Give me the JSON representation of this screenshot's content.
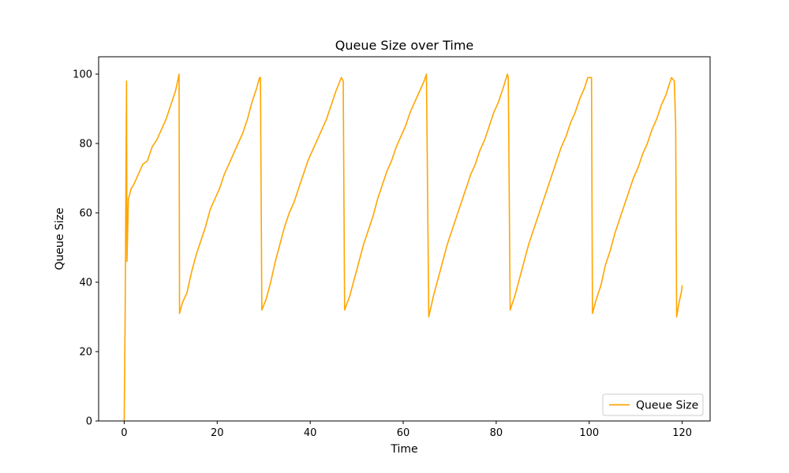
{
  "chart_data": {
    "type": "line",
    "title": "Queue Size over Time",
    "xlabel": "Time",
    "ylabel": "Queue Size",
    "xlim": [
      -5.5,
      126.0
    ],
    "ylim": [
      0,
      105
    ],
    "xticks": [
      0,
      20,
      40,
      60,
      80,
      100,
      120
    ],
    "yticks": [
      0,
      20,
      40,
      60,
      80,
      100
    ],
    "grid": false,
    "legend_position": "lower-right",
    "series": [
      {
        "name": "Queue Size",
        "color": "#FFA500",
        "points": [
          [
            0.0,
            0
          ],
          [
            0.2,
            30
          ],
          [
            0.5,
            98
          ],
          [
            0.6,
            46
          ],
          [
            0.9,
            64
          ],
          [
            1.5,
            67
          ],
          [
            2.0,
            68
          ],
          [
            3.0,
            71
          ],
          [
            4.0,
            74
          ],
          [
            5.0,
            75
          ],
          [
            6.0,
            79
          ],
          [
            7.0,
            81
          ],
          [
            8.0,
            84
          ],
          [
            9.0,
            87
          ],
          [
            10.0,
            91
          ],
          [
            11.0,
            95
          ],
          [
            11.5,
            98
          ],
          [
            11.8,
            100
          ],
          [
            11.9,
            31
          ],
          [
            12.5,
            34
          ],
          [
            13.5,
            37
          ],
          [
            14.5,
            43
          ],
          [
            15.5,
            48
          ],
          [
            16.5,
            52
          ],
          [
            17.5,
            56
          ],
          [
            18.5,
            61
          ],
          [
            19.5,
            64
          ],
          [
            20.5,
            67
          ],
          [
            21.5,
            71
          ],
          [
            22.5,
            74
          ],
          [
            23.5,
            77
          ],
          [
            24.5,
            80
          ],
          [
            25.5,
            83
          ],
          [
            26.5,
            87
          ],
          [
            27.5,
            92
          ],
          [
            28.5,
            96
          ],
          [
            29.1,
            99
          ],
          [
            29.3,
            99
          ],
          [
            29.6,
            32
          ],
          [
            30.5,
            35
          ],
          [
            31.5,
            40
          ],
          [
            32.5,
            46
          ],
          [
            33.5,
            51
          ],
          [
            34.5,
            56
          ],
          [
            35.5,
            60
          ],
          [
            36.5,
            63
          ],
          [
            37.5,
            67
          ],
          [
            38.5,
            71
          ],
          [
            39.5,
            75
          ],
          [
            40.5,
            78
          ],
          [
            41.5,
            81
          ],
          [
            42.5,
            84
          ],
          [
            43.5,
            87
          ],
          [
            44.5,
            91
          ],
          [
            45.5,
            95
          ],
          [
            46.7,
            99
          ],
          [
            47.1,
            98
          ],
          [
            47.4,
            32
          ],
          [
            48.5,
            36
          ],
          [
            49.5,
            41
          ],
          [
            50.5,
            46
          ],
          [
            51.5,
            51
          ],
          [
            52.5,
            55
          ],
          [
            53.5,
            59
          ],
          [
            54.5,
            64
          ],
          [
            55.5,
            68
          ],
          [
            56.5,
            72
          ],
          [
            57.5,
            75
          ],
          [
            58.5,
            79
          ],
          [
            59.5,
            82
          ],
          [
            60.5,
            85
          ],
          [
            61.5,
            89
          ],
          [
            62.5,
            92
          ],
          [
            63.5,
            95
          ],
          [
            64.5,
            98
          ],
          [
            65.0,
            100
          ],
          [
            65.5,
            30
          ],
          [
            66.5,
            36
          ],
          [
            67.5,
            41
          ],
          [
            68.5,
            46
          ],
          [
            69.5,
            51
          ],
          [
            70.5,
            55
          ],
          [
            71.5,
            59
          ],
          [
            72.5,
            63
          ],
          [
            73.5,
            67
          ],
          [
            74.5,
            71
          ],
          [
            75.5,
            74
          ],
          [
            76.5,
            78
          ],
          [
            77.5,
            81
          ],
          [
            78.5,
            85
          ],
          [
            79.5,
            89
          ],
          [
            80.5,
            92
          ],
          [
            81.5,
            96
          ],
          [
            82.4,
            100
          ],
          [
            82.6,
            99
          ],
          [
            83.0,
            32
          ],
          [
            84.0,
            36
          ],
          [
            85.0,
            41
          ],
          [
            86.0,
            46
          ],
          [
            87.0,
            51
          ],
          [
            88.0,
            55
          ],
          [
            89.0,
            59
          ],
          [
            90.0,
            63
          ],
          [
            91.0,
            67
          ],
          [
            92.0,
            71
          ],
          [
            93.0,
            75
          ],
          [
            94.0,
            79
          ],
          [
            95.0,
            82
          ],
          [
            96.0,
            86
          ],
          [
            97.0,
            89
          ],
          [
            98.0,
            93
          ],
          [
            99.0,
            96
          ],
          [
            99.7,
            99
          ],
          [
            100.5,
            99
          ],
          [
            100.7,
            31
          ],
          [
            101.5,
            35
          ],
          [
            102.5,
            39
          ],
          [
            103.5,
            45
          ],
          [
            104.5,
            49
          ],
          [
            105.5,
            54
          ],
          [
            106.5,
            58
          ],
          [
            107.5,
            62
          ],
          [
            108.5,
            66
          ],
          [
            109.5,
            70
          ],
          [
            110.5,
            73
          ],
          [
            111.5,
            77
          ],
          [
            112.5,
            80
          ],
          [
            113.5,
            84
          ],
          [
            114.5,
            87
          ],
          [
            115.5,
            91
          ],
          [
            116.5,
            94
          ],
          [
            117.2,
            97
          ],
          [
            117.7,
            99
          ],
          [
            118.3,
            98
          ],
          [
            118.6,
            85
          ],
          [
            118.8,
            30
          ],
          [
            119.3,
            34
          ],
          [
            119.8,
            37
          ],
          [
            120.0,
            39
          ]
        ]
      }
    ]
  }
}
